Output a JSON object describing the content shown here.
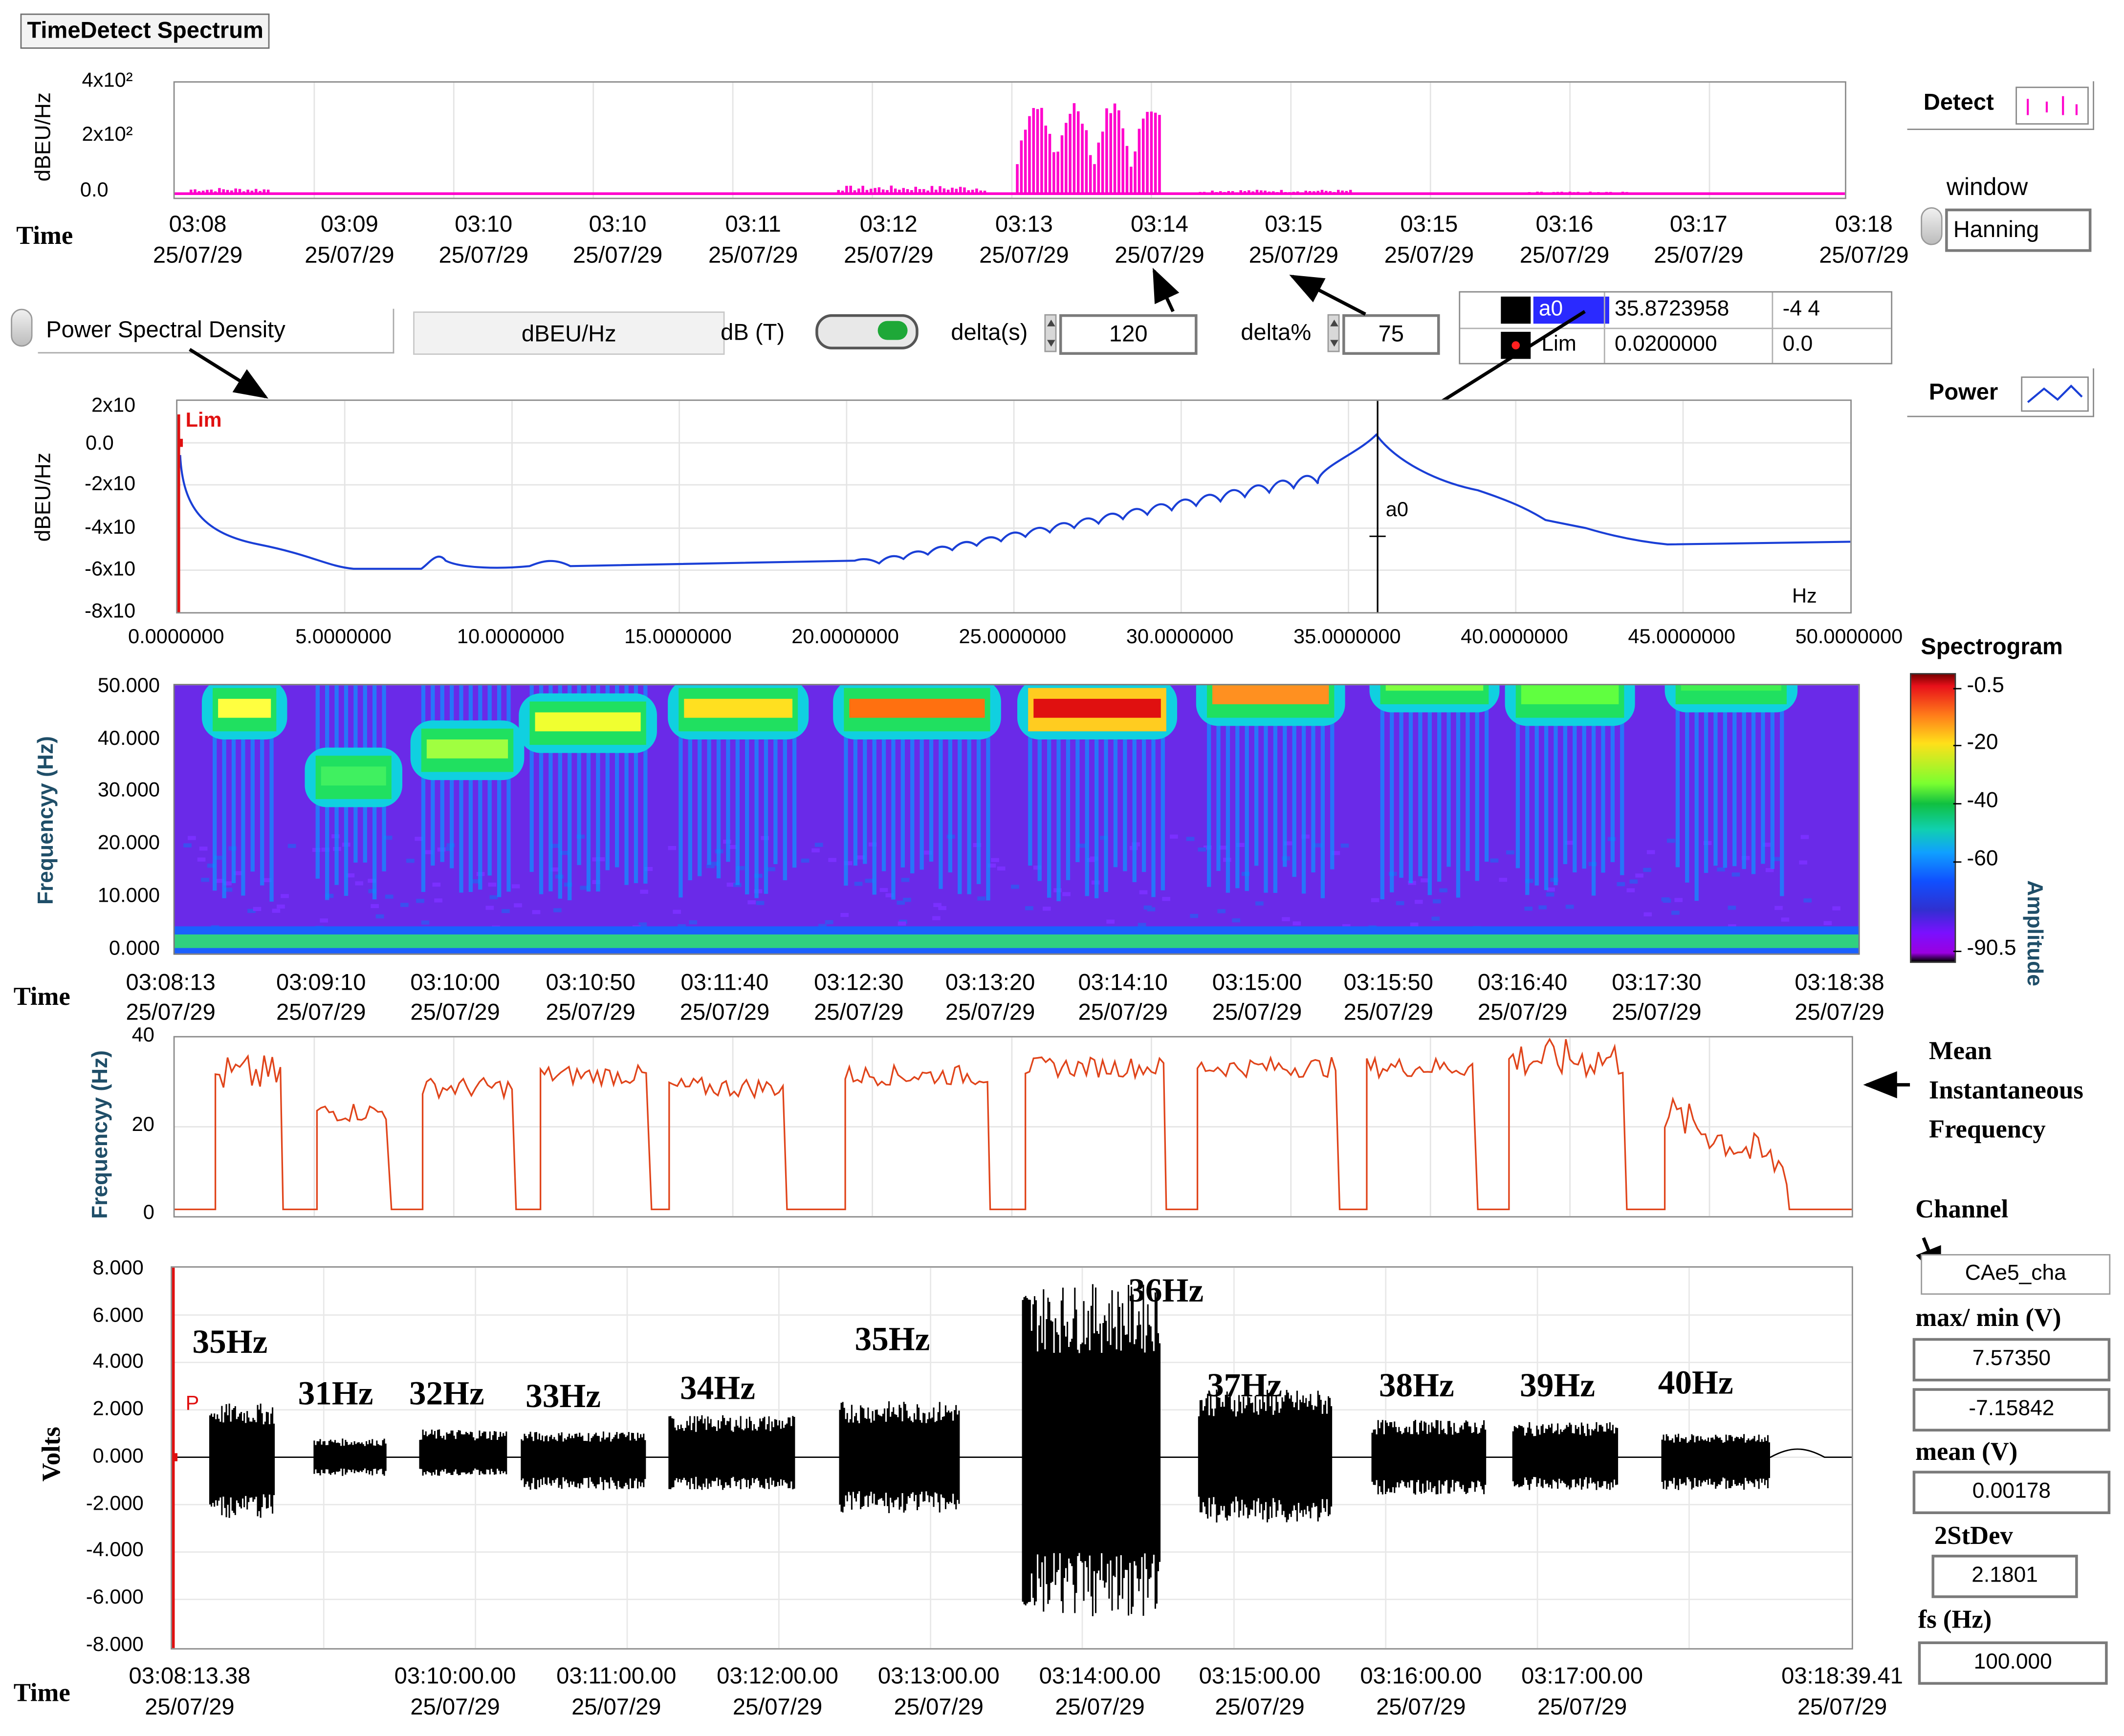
{
  "window_title": "TimeDetect Spectrum",
  "detect": {
    "time_label": "Time",
    "y_label": "dBEU/Hz",
    "y_ticks": [
      "4x10²",
      "2x10²",
      "0.0"
    ],
    "x_ticks": [
      {
        "time": "03:08",
        "date": "25/07/29"
      },
      {
        "time": "03:09",
        "date": "25/07/29"
      },
      {
        "time": "03:10",
        "date": "25/07/29"
      },
      {
        "time": "03:10",
        "date": "25/07/29"
      },
      {
        "time": "03:11",
        "date": "25/07/29"
      },
      {
        "time": "03:12",
        "date": "25/07/29"
      },
      {
        "time": "03:13",
        "date": "25/07/29"
      },
      {
        "time": "03:14",
        "date": "25/07/29"
      },
      {
        "time": "03:15",
        "date": "25/07/29"
      },
      {
        "time": "03:15",
        "date": "25/07/29"
      },
      {
        "time": "03:16",
        "date": "25/07/29"
      },
      {
        "time": "03:17",
        "date": "25/07/29"
      },
      {
        "time": "03:18",
        "date": "25/07/29"
      }
    ],
    "legend_label": "Detect",
    "color": "#ff00cc"
  },
  "window_ctrl": {
    "label": "window",
    "value": "Hanning"
  },
  "controls": {
    "mode": "Power Spectral Density",
    "units": "dBEU/Hz",
    "db_label": "dB (T)",
    "delta_s_label": "delta(s)",
    "delta_s": "120",
    "delta_pct_label": "delta%",
    "delta_pct": "75"
  },
  "cursors": {
    "rows": [
      {
        "name": "a0",
        "x": "35.8723958",
        "y": "-4 4"
      },
      {
        "name": "Lim",
        "x": "0.0200000",
        "y": "0.0"
      }
    ]
  },
  "power_legend": "Power",
  "psd": {
    "y_label": "dBEU/Hz",
    "y_ticks": [
      "2x10",
      "0.0",
      "-2x10",
      "-4x10",
      "-6x10",
      "-8x10"
    ],
    "x_ticks": [
      "0.0000000",
      "5.0000000",
      "10.0000000",
      "15.0000000",
      "20.0000000",
      "25.0000000",
      "30.0000000",
      "35.0000000",
      "40.0000000",
      "45.0000000",
      "50.0000000"
    ],
    "unit": "Hz",
    "lim_label": "Lim",
    "cursor_label": "a0",
    "color": "#1a3fd6"
  },
  "spectrogram": {
    "title": "Spectrogram",
    "y_label": "Frequencyy (Hz)",
    "y_ticks": [
      "50.000",
      "40.000",
      "30.000",
      "20.000",
      "10.000",
      "0.000"
    ],
    "x_ticks": [
      "03:08:13",
      "03:09:10",
      "03:10:00",
      "03:10:50",
      "03:11:40",
      "03:12:30",
      "03:13:20",
      "03:14:10",
      "03:15:00",
      "03:15:50",
      "03:16:40",
      "03:17:30",
      "03:18:38"
    ],
    "date": "25/07/29",
    "time_label": "Time",
    "colorbar_label": "Amplitude",
    "colorbar_ticks": [
      "-0.5",
      "-20",
      "-40",
      "-60",
      "-90.5"
    ]
  },
  "mif": {
    "y_label": "Frequencyy (Hz)",
    "y_ticks": [
      "40",
      "20",
      "0"
    ],
    "annotation": [
      "Mean",
      "Instantaneous",
      "Frequency"
    ],
    "color": "#e0441a"
  },
  "signal": {
    "y_label": "Volts",
    "y_ticks": [
      "8.000",
      "6.000",
      "4.000",
      "2.000",
      "0.000",
      "-2.000",
      "-4.000",
      "-6.000",
      "-8.000"
    ],
    "x_ticks": [
      "03:08:13.38",
      "03:10:00.00",
      "03:11:00.00",
      "03:12:00.00",
      "03:13:00.00",
      "03:14:00.00",
      "03:15:00.00",
      "03:16:00.00",
      "03:17:00.00",
      "03:18:39.41"
    ],
    "date": "25/07/29",
    "time_label": "Time",
    "p_label": "P",
    "burst_labels": [
      "35Hz",
      "31Hz",
      "32Hz",
      "33Hz",
      "34Hz",
      "35Hz",
      "36Hz",
      "37Hz",
      "38Hz",
      "39Hz",
      "40Hz"
    ]
  },
  "side": {
    "channel_label": "Channel",
    "channel": "CAe5_cha",
    "maxmin_label": "max/ min (V)",
    "max": "7.57350",
    "min": "-7.15842",
    "mean_label": "mean (V)",
    "mean": "0.00178",
    "stdev_label": "2StDev",
    "stdev": "2.1801",
    "fs_label": "fs (Hz)",
    "fs": "100.000"
  }
}
